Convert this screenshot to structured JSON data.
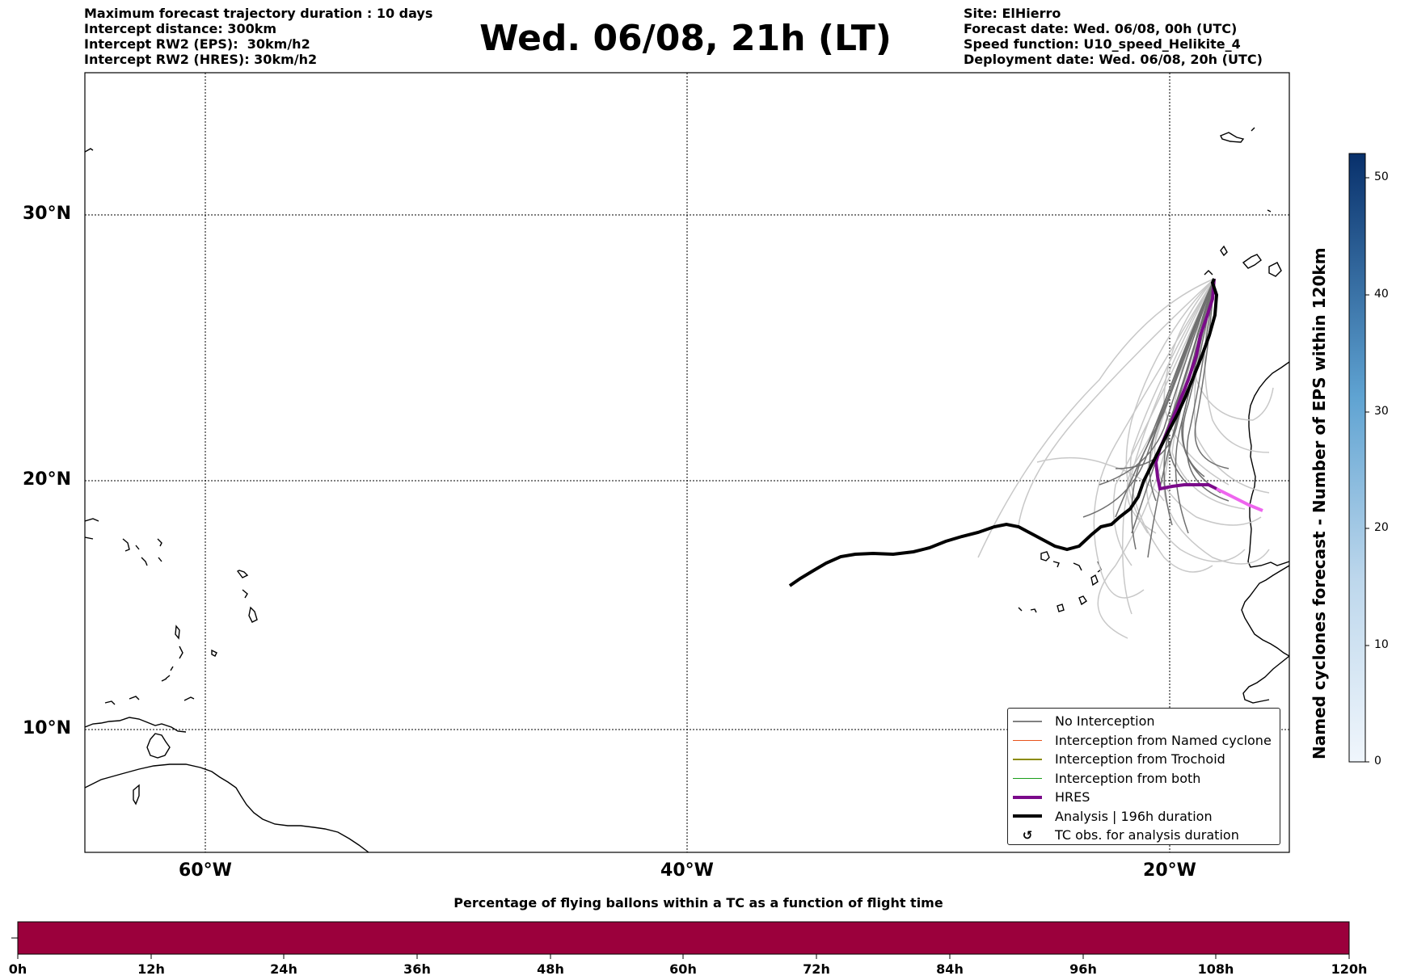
{
  "header": {
    "left_lines": [
      "Maximum forecast trajectory duration : 10 days",
      "Intercept distance: 300km",
      "Intercept RW2 (EPS):  30km/h2",
      "Intercept RW2 (HRES): 30km/h2"
    ],
    "title": "Wed. 06/08, 21h (LT)",
    "right_lines": [
      "Site: ElHierro",
      "Forecast date: Wed. 06/08, 00h (UTC)",
      "Speed function: U10_speed_Helikite_4",
      "Deployment date: Wed. 06/08, 20h (UTC)"
    ]
  },
  "map": {
    "lat_labels": [
      "30°N",
      "20°N",
      "10°N"
    ],
    "lon_labels": [
      "60°W",
      "40°W",
      "20°W"
    ],
    "gridlines": true
  },
  "legend": {
    "placement": "lower-right",
    "items": [
      {
        "label": "No Interception",
        "color": "#808080",
        "style": "thin"
      },
      {
        "label": "Interception from Named cyclone",
        "color": "#e8541c",
        "style": "thin"
      },
      {
        "label": "Interception from Trochoid",
        "color": "#8b8b00",
        "style": "thin"
      },
      {
        "label": "Interception from both",
        "color": "#1a9e1a",
        "style": "thin"
      },
      {
        "label": "HRES",
        "color": "#7b0a8a",
        "style": "thick"
      },
      {
        "label": "Analysis | 196h duration",
        "color": "#000000",
        "style": "thick"
      },
      {
        "label": "TC obs. for analysis duration",
        "color": "#000000",
        "style": "marker",
        "icon": "rotate-marker-icon",
        "glyph": "↺"
      }
    ]
  },
  "colorbar": {
    "label": "Named cyclones forecast - Number of EPS within 120km",
    "ticks": [
      "0",
      "10",
      "20",
      "30",
      "40",
      "50"
    ],
    "colors": [
      "#eef4fb",
      "#08306b"
    ]
  },
  "bottom_bar": {
    "title": "Percentage of flying ballons within a TC as a function of flight time",
    "ticks": [
      "0h",
      "12h",
      "24h",
      "36h",
      "48h",
      "60h",
      "72h",
      "84h",
      "96h",
      "108h",
      "120h"
    ],
    "fill_color": "#9b003c"
  }
}
